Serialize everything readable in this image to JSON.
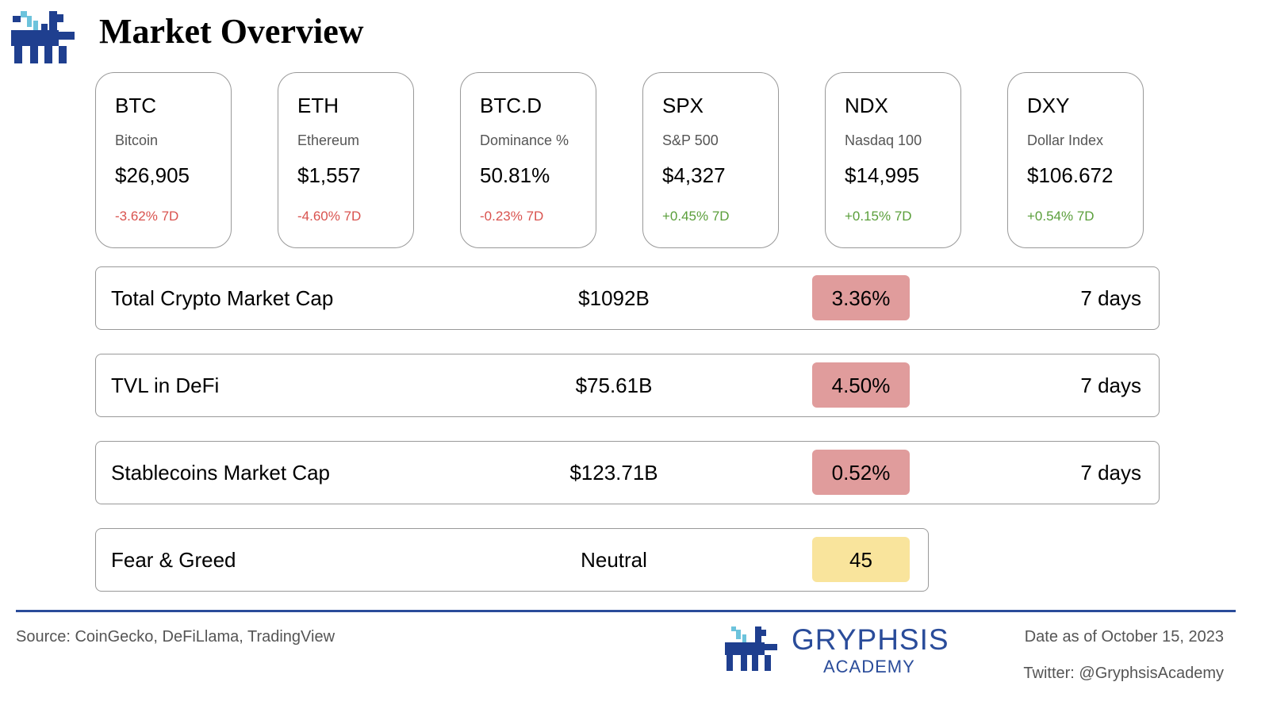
{
  "header": {
    "title": "Market Overview"
  },
  "cards": [
    {
      "ticker": "BTC",
      "name": "Bitcoin",
      "price": "$26,905",
      "change": "-3.62% 7D",
      "change_color": "#d9534f"
    },
    {
      "ticker": "ETH",
      "name": "Ethereum",
      "price": "$1,557",
      "change": "-4.60% 7D",
      "change_color": "#d9534f"
    },
    {
      "ticker": "BTC.D",
      "name": "Dominance %",
      "price": "50.81%",
      "change": "-0.23% 7D",
      "change_color": "#d9534f"
    },
    {
      "ticker": "SPX",
      "name": "S&P 500",
      "price": "$4,327",
      "change": "+0.45% 7D",
      "change_color": "#5a9e3a"
    },
    {
      "ticker": "NDX",
      "name": "Nasdaq 100",
      "price": "$14,995",
      "change": "+0.15% 7D",
      "change_color": "#5a9e3a"
    },
    {
      "ticker": "DXY",
      "name": "Dollar Index",
      "price": "$106.672",
      "change": "+0.54% 7D",
      "change_color": "#5a9e3a"
    }
  ],
  "rows": [
    {
      "label": "Total Crypto Market Cap",
      "value": "$1092B",
      "badge": "3.36%",
      "badge_color": "#e09c9c",
      "period": "7 days"
    },
    {
      "label": "TVL in DeFi",
      "value": "$75.61B",
      "badge": "4.50%",
      "badge_color": "#e09c9c",
      "period": "7 days"
    },
    {
      "label": "Stablecoins Market Cap",
      "value": "$123.71B",
      "badge": "0.52%",
      "badge_color": "#e09c9c",
      "period": "7 days"
    },
    {
      "label": "Fear & Greed",
      "value": "Neutral",
      "badge": "45",
      "badge_color": "#f9e49c"
    }
  ],
  "footer": {
    "source": "Source: CoinGecko, DeFiLlama, TradingView",
    "brand": "GRYPHSIS",
    "brand_sub": "ACADEMY",
    "date": "Date as of October 15, 2023",
    "twitter": "Twitter: @GryphsisAcademy"
  }
}
